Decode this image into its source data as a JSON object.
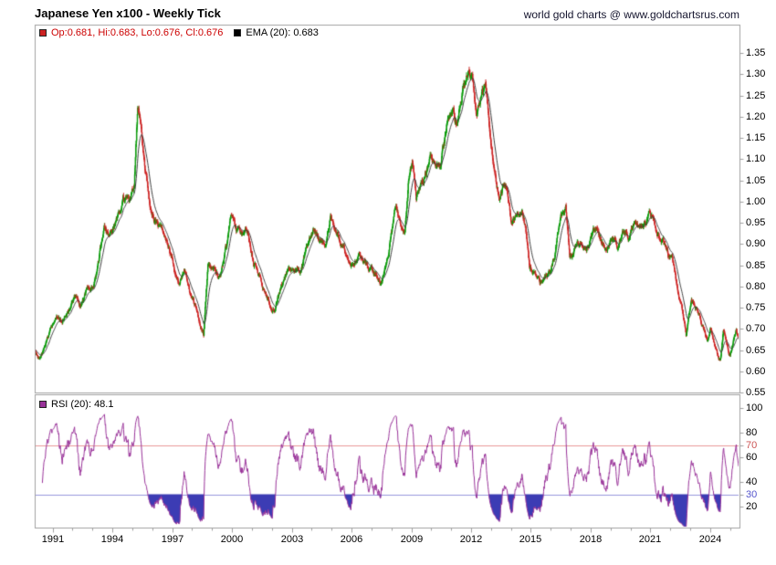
{
  "header": {
    "title": "Japanese Yen x100 - Weekly Tick",
    "attribution": "world gold charts @ www.goldchartsrus.com"
  },
  "price_panel": {
    "ohlc_legend": "Op:0.681, Hi:0.683, Lo:0.676, Cl:0.676",
    "ema_legend": "EMA (20): 0.683",
    "y_tick_labels": [
      "1.35",
      "1.30",
      "1.25",
      "1.20",
      "1.15",
      "1.10",
      "1.05",
      "1.00",
      "0.95",
      "0.90",
      "0.85",
      "0.80",
      "0.75",
      "0.70",
      "0.65",
      "0.60",
      "0.55"
    ]
  },
  "rsi_panel": {
    "legend": "RSI (20): 48.1",
    "y_tick_labels": [
      "100",
      "80",
      "70",
      "60",
      "40",
      "30",
      "20"
    ],
    "overbought_label": "70",
    "oversold_label": "30"
  },
  "x_axis": {
    "year_labels": [
      "1991",
      "1994",
      "1997",
      "2000",
      "2003",
      "2006",
      "2009",
      "2012",
      "2015",
      "2018",
      "2021",
      "2024"
    ]
  },
  "colors": {
    "up": "#0a9a0a",
    "down": "#cc2222",
    "ema": "#3d3d3d",
    "ema_swatch": "#000000",
    "rsi": "#993399",
    "overbought_line": "#e89898",
    "oversold_line": "#9898dd",
    "overbought_label": "#cc5555",
    "oversold_label": "#5555cc",
    "rsi_fill": "#3c3cb4",
    "border": "#a0a0a0",
    "ohlc_text": "#cc0000"
  },
  "chart_data": {
    "type": "candlestick",
    "title": "Japanese Yen x100 - Weekly Tick",
    "frequency": "weekly",
    "x_range": [
      1990.1,
      2025.47
    ],
    "price_axis": {
      "min": 0.55,
      "max": 1.35,
      "step": 0.05
    },
    "rsi_axis": {
      "ticks": [
        100,
        80,
        70,
        60,
        40,
        30,
        20
      ],
      "overbought": 70,
      "oversold": 30
    },
    "last_bar": {
      "open": 0.681,
      "high": 0.683,
      "low": 0.676,
      "close": 0.676
    },
    "ema_period": 20,
    "ema_last": 0.683,
    "rsi_period": 20,
    "rsi_last": 48.1,
    "seed": 42,
    "series": [
      {
        "name": "JPY x100 weekly OHLC",
        "type": "candlestick",
        "panel": "price"
      },
      {
        "name": "EMA (20)",
        "type": "line",
        "panel": "price",
        "derived_from": "closes"
      },
      {
        "name": "RSI (20)",
        "type": "line",
        "panel": "rsi",
        "derived_from": "closes"
      }
    ],
    "price_anchors": [
      [
        1990.1,
        0.65
      ],
      [
        1990.3,
        0.632
      ],
      [
        1990.6,
        0.655
      ],
      [
        1990.9,
        0.695
      ],
      [
        1991.2,
        0.73
      ],
      [
        1991.45,
        0.713
      ],
      [
        1991.8,
        0.742
      ],
      [
        1992.1,
        0.772
      ],
      [
        1992.4,
        0.755
      ],
      [
        1992.75,
        0.793
      ],
      [
        1993.05,
        0.802
      ],
      [
        1993.35,
        0.872
      ],
      [
        1993.6,
        0.938
      ],
      [
        1993.85,
        0.915
      ],
      [
        1994.2,
        0.955
      ],
      [
        1994.55,
        1.008
      ],
      [
        1994.9,
        1.0
      ],
      [
        1995.1,
        1.04
      ],
      [
        1995.28,
        1.228
      ],
      [
        1995.42,
        1.178
      ],
      [
        1995.65,
        1.068
      ],
      [
        1995.9,
        0.985
      ],
      [
        1996.2,
        0.948
      ],
      [
        1996.6,
        0.918
      ],
      [
        1996.95,
        0.868
      ],
      [
        1997.3,
        0.805
      ],
      [
        1997.6,
        0.842
      ],
      [
        1997.95,
        0.775
      ],
      [
        1998.25,
        0.742
      ],
      [
        1998.58,
        0.69
      ],
      [
        1998.8,
        0.852
      ],
      [
        1999.1,
        0.852
      ],
      [
        1999.4,
        0.82
      ],
      [
        1999.75,
        0.9
      ],
      [
        1999.97,
        0.972
      ],
      [
        2000.2,
        0.94
      ],
      [
        2000.5,
        0.924
      ],
      [
        2000.8,
        0.93
      ],
      [
        2001.1,
        0.855
      ],
      [
        2001.5,
        0.805
      ],
      [
        2001.95,
        0.758
      ],
      [
        2002.12,
        0.745
      ],
      [
        2002.5,
        0.805
      ],
      [
        2002.8,
        0.835
      ],
      [
        2003.1,
        0.84
      ],
      [
        2003.45,
        0.833
      ],
      [
        2003.8,
        0.9
      ],
      [
        2004.1,
        0.933
      ],
      [
        2004.4,
        0.905
      ],
      [
        2004.72,
        0.905
      ],
      [
        2004.95,
        0.963
      ],
      [
        2005.2,
        0.933
      ],
      [
        2005.6,
        0.888
      ],
      [
        2005.95,
        0.845
      ],
      [
        2006.35,
        0.873
      ],
      [
        2006.7,
        0.855
      ],
      [
        2006.95,
        0.84
      ],
      [
        2007.3,
        0.823
      ],
      [
        2007.52,
        0.81
      ],
      [
        2007.85,
        0.873
      ],
      [
        2008.2,
        0.988
      ],
      [
        2008.45,
        0.935
      ],
      [
        2008.68,
        0.92
      ],
      [
        2008.88,
        1.052
      ],
      [
        2009.05,
        1.093
      ],
      [
        2009.25,
        1.01
      ],
      [
        2009.6,
        1.053
      ],
      [
        2009.95,
        1.112
      ],
      [
        2010.2,
        1.078
      ],
      [
        2010.5,
        1.093
      ],
      [
        2010.85,
        1.203
      ],
      [
        2011.1,
        1.213
      ],
      [
        2011.28,
        1.178
      ],
      [
        2011.6,
        1.268
      ],
      [
        2011.82,
        1.303
      ],
      [
        2012.05,
        1.293
      ],
      [
        2012.28,
        1.203
      ],
      [
        2012.55,
        1.253
      ],
      [
        2012.75,
        1.268
      ],
      [
        2012.95,
        1.16
      ],
      [
        2013.15,
        1.075
      ],
      [
        2013.4,
        1.0
      ],
      [
        2013.62,
        1.038
      ],
      [
        2013.85,
        1.013
      ],
      [
        2014.02,
        0.955
      ],
      [
        2014.3,
        0.973
      ],
      [
        2014.58,
        0.983
      ],
      [
        2014.75,
        0.93
      ],
      [
        2014.95,
        0.84
      ],
      [
        2015.2,
        0.833
      ],
      [
        2015.45,
        0.805
      ],
      [
        2015.7,
        0.823
      ],
      [
        2015.95,
        0.83
      ],
      [
        2016.2,
        0.88
      ],
      [
        2016.5,
        0.953
      ],
      [
        2016.75,
        0.983
      ],
      [
        2016.95,
        0.865
      ],
      [
        2017.2,
        0.885
      ],
      [
        2017.5,
        0.9
      ],
      [
        2017.8,
        0.89
      ],
      [
        2018.1,
        0.92
      ],
      [
        2018.28,
        0.938
      ],
      [
        2018.55,
        0.905
      ],
      [
        2018.8,
        0.89
      ],
      [
        2019.05,
        0.91
      ],
      [
        2019.35,
        0.9
      ],
      [
        2019.62,
        0.94
      ],
      [
        2019.9,
        0.92
      ],
      [
        2020.2,
        0.958
      ],
      [
        2020.45,
        0.935
      ],
      [
        2020.7,
        0.945
      ],
      [
        2020.95,
        0.96
      ],
      [
        2021.12,
        0.953
      ],
      [
        2021.35,
        0.915
      ],
      [
        2021.6,
        0.91
      ],
      [
        2021.9,
        0.875
      ],
      [
        2022.1,
        0.863
      ],
      [
        2022.28,
        0.818
      ],
      [
        2022.45,
        0.775
      ],
      [
        2022.6,
        0.74
      ],
      [
        2022.8,
        0.675
      ],
      [
        2022.92,
        0.722
      ],
      [
        2023.05,
        0.768
      ],
      [
        2023.3,
        0.75
      ],
      [
        2023.55,
        0.713
      ],
      [
        2023.75,
        0.69
      ],
      [
        2023.9,
        0.668
      ],
      [
        2024.02,
        0.705
      ],
      [
        2024.25,
        0.66
      ],
      [
        2024.5,
        0.622
      ],
      [
        2024.68,
        0.697
      ],
      [
        2024.85,
        0.655
      ],
      [
        2025.0,
        0.635
      ],
      [
        2025.15,
        0.665
      ],
      [
        2025.3,
        0.693
      ],
      [
        2025.4,
        0.682
      ],
      [
        2025.47,
        0.676
      ]
    ]
  }
}
